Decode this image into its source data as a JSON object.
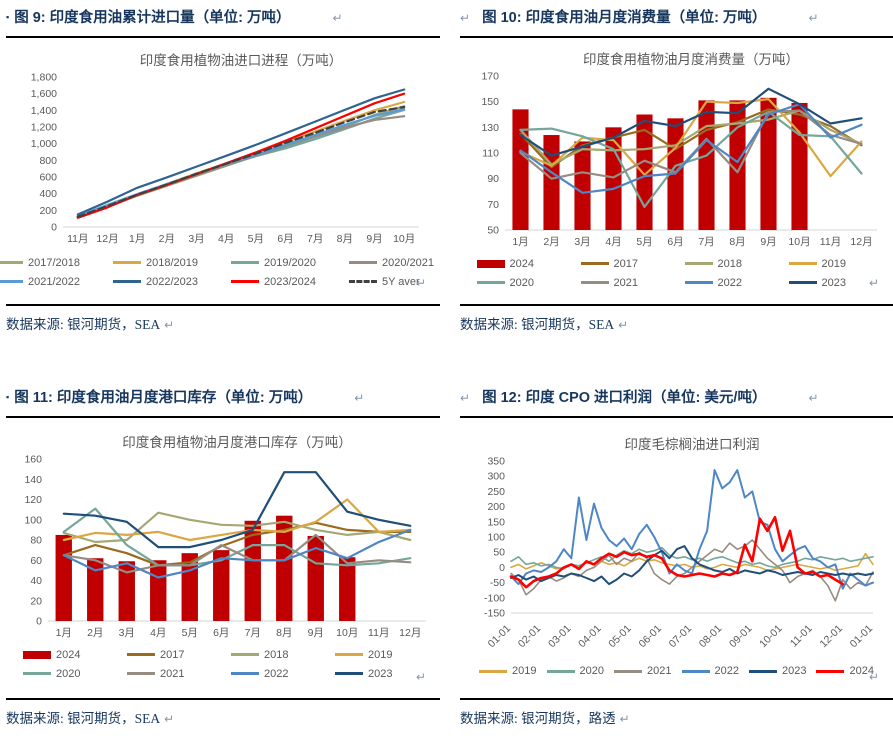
{
  "glyphs": {
    "return_mark": "↵",
    "bullet": "▪"
  },
  "colors": {
    "title_navy": "#17365D",
    "bar_red": "#C00000",
    "line_red": "#FF0000",
    "navy_2023": "#1F4E79",
    "steel_2022": "#4E86C6",
    "teal_2020": "#74A79A",
    "gold_2019": "#D9A843",
    "olive_2018": "#A6A873",
    "brown_2017": "#9A6A1F",
    "gray_2021": "#968C82",
    "dash_black": "#404040"
  },
  "panels": [
    {
      "title": "图 9: 印度食用油累计进口量（单位: 万吨）",
      "source": "数据来源: 银河期货，SEA"
    },
    {
      "title": "图 10: 印度食用油月度消费量（单位: 万吨）",
      "source": "数据来源: 银河期货，SEA"
    },
    {
      "title": "图 11: 印度食用油月度港口库存（单位: 万吨）",
      "source": "数据来源: 银河期货，SEA"
    },
    {
      "title": "图 12: 印度 CPO 进口利润（单位: 美元/吨）",
      "source": "数据来源: 银河期货，路透"
    }
  ],
  "chart_data": [
    {
      "type": "line",
      "title": "印度食用植物油进口进程（万吨）",
      "xlabel": "",
      "ylabel": "",
      "ymin": 0,
      "ymax": 1800,
      "ystep": 200,
      "thousands": true,
      "grid": false,
      "legend_position": "bottom",
      "categories": [
        "11月",
        "12月",
        "1月",
        "2月",
        "3月",
        "4月",
        "5月",
        "6月",
        "7月",
        "8月",
        "9月",
        "10月"
      ],
      "series": [
        {
          "name": "2017/2018",
          "color": "#A6A873",
          "values": [
            115,
            245,
            375,
            495,
            615,
            735,
            855,
            965,
            1085,
            1205,
            1345,
            1450
          ]
        },
        {
          "name": "2018/2019",
          "color": "#D9A843",
          "values": [
            120,
            255,
            390,
            515,
            645,
            765,
            885,
            1015,
            1145,
            1275,
            1400,
            1500
          ]
        },
        {
          "name": "2019/2020",
          "color": "#74A79A",
          "values": [
            125,
            260,
            385,
            505,
            630,
            745,
            850,
            945,
            1055,
            1175,
            1300,
            1405
          ]
        },
        {
          "name": "2020/2021",
          "color": "#968C82",
          "values": [
            120,
            250,
            380,
            500,
            620,
            740,
            855,
            975,
            1085,
            1195,
            1285,
            1330
          ]
        },
        {
          "name": "2021/2022",
          "color": "#5B9BD5",
          "values": [
            130,
            265,
            395,
            515,
            635,
            755,
            865,
            985,
            1105,
            1225,
            1335,
            1415
          ]
        },
        {
          "name": "2022/2023",
          "color": "#2F6491",
          "values": [
            150,
            305,
            470,
            595,
            725,
            855,
            985,
            1125,
            1265,
            1405,
            1545,
            1650
          ]
        },
        {
          "name": "2023/2024",
          "color": "#FF0000",
          "values": [
            110,
            235,
            385,
            505,
            635,
            765,
            895,
            1035,
            1185,
            1335,
            1485,
            1600
          ]
        },
        {
          "name": "5Y aver",
          "color": "#404040",
          "dash": true,
          "values": [
            122,
            252,
            388,
            510,
            638,
            760,
            880,
            1010,
            1130,
            1258,
            1380,
            1440
          ]
        }
      ]
    },
    {
      "type": "bar",
      "title": "印度食用植物油月度消费量（万吨）",
      "xlabel": "",
      "ylabel": "",
      "ymin": 50,
      "ymax": 170,
      "ystep": 20,
      "grid": false,
      "legend_position": "bottom",
      "categories": [
        "1月",
        "2月",
        "3月",
        "4月",
        "5月",
        "6月",
        "7月",
        "8月",
        "9月",
        "10月",
        "11月",
        "12月"
      ],
      "bar_series": {
        "name": "2024",
        "color": "#C00000",
        "values": [
          144,
          124,
          119,
          130,
          140,
          137,
          151,
          151,
          153,
          149,
          null,
          null
        ]
      },
      "series": [
        {
          "name": "2017",
          "color": "#9A6A1F",
          "values": [
            125,
            99,
            116,
            122,
            128,
            113,
            128,
            134,
            144,
            140,
            131,
            116
          ]
        },
        {
          "name": "2018",
          "color": "#A6A873",
          "values": [
            128,
            101,
            113,
            112,
            113,
            116,
            131,
            133,
            136,
            143,
            128,
            117
          ]
        },
        {
          "name": "2019",
          "color": "#D9A843",
          "values": [
            111,
            100,
            122,
            120,
            93,
            114,
            150,
            149,
            152,
            126,
            92,
            119
          ]
        },
        {
          "name": "2020",
          "color": "#74A79A",
          "values": [
            128,
            129,
            123,
            113,
            68,
            100,
            108,
            130,
            142,
            124,
            123,
            94
          ]
        },
        {
          "name": "2021",
          "color": "#968C82",
          "values": [
            110,
            90,
            95,
            91,
            104,
            95,
            121,
            95,
            142,
            143,
            124,
            117
          ]
        },
        {
          "name": "2022",
          "color": "#4E86C6",
          "values": [
            112,
            95,
            79,
            82,
            92,
            94,
            120,
            103,
            140,
            148,
            122,
            132
          ]
        },
        {
          "name": "2023",
          "color": "#1F4E79",
          "values": [
            124,
            108,
            115,
            122,
            135,
            131,
            142,
            141,
            160,
            148,
            133,
            137
          ]
        }
      ]
    },
    {
      "type": "bar",
      "title": "印度食用植物油月度港口库存（万吨）",
      "xlabel": "",
      "ylabel": "",
      "ymin": 0,
      "ymax": 160,
      "ystep": 20,
      "grid": false,
      "legend_position": "bottom",
      "categories": [
        "1月",
        "2月",
        "3月",
        "4月",
        "5月",
        "6月",
        "7月",
        "8月",
        "9月",
        "10月",
        "11月",
        "12月"
      ],
      "bar_series": {
        "name": "2024",
        "color": "#C00000",
        "values": [
          85,
          62,
          59,
          60,
          67,
          70,
          99,
          104,
          84,
          63,
          null,
          null
        ]
      },
      "series": [
        {
          "name": "2017",
          "color": "#9A6A1F",
          "values": [
            65,
            75,
            67,
            55,
            58,
            74,
            85,
            90,
            97,
            90,
            88,
            88
          ]
        },
        {
          "name": "2018",
          "color": "#A6A873",
          "values": [
            87,
            78,
            80,
            107,
            100,
            95,
            94,
            98,
            90,
            85,
            88,
            80
          ]
        },
        {
          "name": "2019",
          "color": "#D9A843",
          "values": [
            80,
            87,
            85,
            88,
            80,
            85,
            90,
            88,
            98,
            120,
            88,
            90
          ]
        },
        {
          "name": "2020",
          "color": "#74A79A",
          "values": [
            88,
            111,
            75,
            55,
            55,
            60,
            75,
            75,
            57,
            55,
            57,
            62
          ]
        },
        {
          "name": "2021",
          "color": "#968C82",
          "values": [
            65,
            60,
            48,
            55,
            55,
            75,
            60,
            60,
            85,
            57,
            60,
            58
          ]
        },
        {
          "name": "2022",
          "color": "#4E86C6",
          "values": [
            65,
            50,
            57,
            43,
            50,
            62,
            60,
            60,
            72,
            62,
            78,
            90
          ]
        },
        {
          "name": "2023",
          "color": "#1F4E79",
          "values": [
            106,
            104,
            98,
            73,
            73,
            80,
            90,
            147,
            147,
            108,
            100,
            94
          ]
        }
      ]
    },
    {
      "type": "line",
      "title": "印度毛棕榈油进口利润",
      "xlabel": "",
      "ylabel": "",
      "ymin": -150,
      "ymax": 350,
      "ystep": 50,
      "grid": false,
      "legend_position": "bottom",
      "rotate_x": true,
      "x_count": 49,
      "xtick_every": 4,
      "xtick_labels": [
        "01-01",
        "02-01",
        "03-01",
        "04-01",
        "05-01",
        "06-01",
        "07-01",
        "08-01",
        "09-01",
        "10-01",
        "11-01",
        "12-01",
        "01-01"
      ],
      "series": [
        {
          "name": "2019",
          "color": "#D9A843",
          "width": 1.6,
          "values": [
            0,
            10,
            -5,
            5,
            15,
            5,
            -5,
            0,
            10,
            5,
            15,
            10,
            20,
            10,
            15,
            5,
            20,
            30,
            20,
            25,
            15,
            10,
            5,
            10,
            0,
            5,
            -5,
            0,
            10,
            5,
            0,
            10,
            5,
            0,
            -10,
            -5,
            0,
            5,
            10,
            5,
            0,
            -5,
            0,
            -10,
            -5,
            0,
            5,
            45,
            10
          ]
        },
        {
          "name": "2020",
          "color": "#74A79A",
          "width": 1.6,
          "values": [
            20,
            35,
            10,
            15,
            5,
            10,
            0,
            -5,
            10,
            5,
            15,
            25,
            35,
            20,
            40,
            55,
            45,
            60,
            50,
            55,
            65,
            40,
            30,
            35,
            25,
            30,
            20,
            30,
            35,
            25,
            15,
            20,
            10,
            15,
            5,
            0,
            10,
            15,
            20,
            30,
            25,
            35,
            30,
            25,
            30,
            20,
            25,
            30,
            35
          ]
        },
        {
          "name": "2021",
          "color": "#968C82",
          "width": 1.6,
          "values": [
            -20,
            -40,
            -90,
            -70,
            -40,
            -30,
            -45,
            -35,
            -20,
            -30,
            -10,
            0,
            20,
            40,
            10,
            30,
            20,
            50,
            30,
            -20,
            -40,
            -55,
            -30,
            -20,
            0,
            20,
            40,
            60,
            50,
            80,
            60,
            70,
            90,
            60,
            30,
            10,
            -10,
            -50,
            -30,
            -20,
            -10,
            -30,
            -60,
            -110,
            -40,
            -70,
            -50,
            -60,
            -15
          ]
        },
        {
          "name": "2022",
          "color": "#4E86C6",
          "width": 2,
          "values": [
            -30,
            -55,
            -20,
            -10,
            -15,
            0,
            20,
            60,
            30,
            230,
            90,
            210,
            130,
            90,
            70,
            95,
            60,
            110,
            140,
            100,
            50,
            -20,
            10,
            -10,
            -20,
            60,
            120,
            320,
            260,
            280,
            320,
            230,
            250,
            150,
            140,
            60,
            20,
            40,
            60,
            70,
            30,
            20,
            0,
            10,
            -70,
            -20,
            -40,
            -60,
            -50
          ]
        },
        {
          "name": "2023",
          "color": "#1F4E79",
          "width": 2,
          "values": [
            -35,
            -25,
            -40,
            -30,
            -45,
            -35,
            -25,
            -30,
            -20,
            -25,
            -35,
            -45,
            -30,
            -55,
            -40,
            -20,
            -30,
            -10,
            20,
            40,
            55,
            30,
            60,
            70,
            30,
            10,
            0,
            -10,
            -15,
            -5,
            -20,
            -10,
            -15,
            -20,
            -10,
            -15,
            -25,
            -20,
            -15,
            -20,
            -25,
            -15,
            -20,
            -25,
            -20,
            -25,
            -20,
            -25,
            -20
          ]
        },
        {
          "name": "2024",
          "color": "#FF0000",
          "width": 2.6,
          "values": [
            -30,
            -40,
            -65,
            -45,
            -35,
            -30,
            -20,
            0,
            10,
            -5,
            20,
            10,
            30,
            45,
            35,
            50,
            40,
            45,
            35,
            40,
            30,
            -10,
            -25,
            -30,
            -25,
            -20,
            -25,
            -30,
            -20,
            -25,
            -15,
            75,
            20,
            160,
            120,
            165,
            55,
            120,
            0,
            -20,
            -15,
            -30,
            -25,
            -40,
            -55,
            null,
            null,
            null,
            null
          ]
        }
      ]
    }
  ]
}
